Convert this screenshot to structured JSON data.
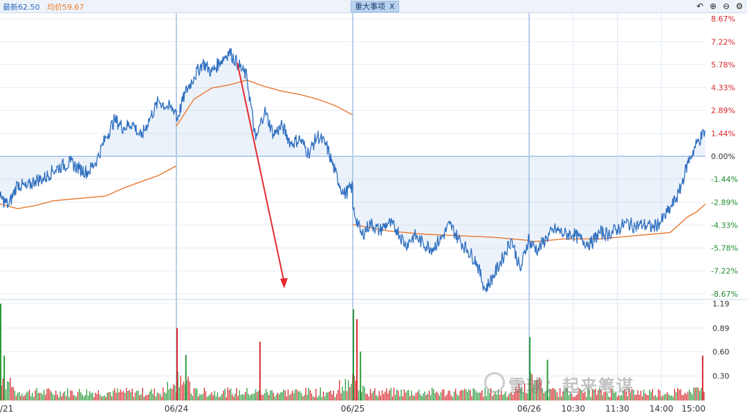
{
  "header": {
    "latest_label": "最新62.50",
    "avg_label": "均价59.67",
    "event_tab_label": "重大事项",
    "event_tab_close": "X"
  },
  "toolbar": {
    "undo_icon": "undo-icon",
    "zoom_in_icon": "zoom-in-icon",
    "zoom_out_icon": "zoom-out-icon",
    "settings_icon": "gear-icon"
  },
  "watermark": {
    "text": "雪球：起来筹谋"
  },
  "chart_data": {
    "type": "line",
    "title": "",
    "price_axis": {
      "ticks": [
        "8.67%",
        "7.22%",
        "5.78%",
        "4.33%",
        "2.89%",
        "1.44%",
        "0.00%",
        "-1.44%",
        "-2.89%",
        "-4.33%",
        "-5.78%",
        "-7.22%",
        "-8.67%"
      ],
      "ylim": [
        -8.67,
        8.67
      ]
    },
    "volume_axis": {
      "ticks": [
        "1.19",
        "0.89",
        "0.60",
        "0.30"
      ],
      "ylim": [
        0,
        1.19
      ]
    },
    "x_ticks": [
      {
        "label": "/21",
        "pos": 0
      },
      {
        "label": "06/24",
        "pos": 1
      },
      {
        "label": "06/25",
        "pos": 2
      },
      {
        "label": "06/26",
        "pos": 3
      },
      {
        "label": "10:30",
        "pos": 3.25
      },
      {
        "label": "11:30",
        "pos": 3.5
      },
      {
        "label": "14:00",
        "pos": 3.75
      },
      {
        "label": "15:00",
        "pos": 4
      }
    ],
    "days": 4,
    "series": [
      {
        "key": "price",
        "color": "#2f6fc0",
        "values": [
          [
            0,
            -2.6
          ],
          [
            0.05,
            -3.1
          ],
          [
            0.1,
            -1.7
          ],
          [
            0.15,
            -2.0
          ],
          [
            0.2,
            -1.5
          ],
          [
            0.25,
            -1.4
          ],
          [
            0.3,
            -0.9
          ],
          [
            0.35,
            -0.6
          ],
          [
            0.4,
            -0.4
          ],
          [
            0.45,
            -0.8
          ],
          [
            0.5,
            -1.0
          ],
          [
            0.55,
            -0.2
          ],
          [
            0.6,
            1.2
          ],
          [
            0.65,
            2.3
          ],
          [
            0.7,
            1.8
          ],
          [
            0.75,
            2.1
          ],
          [
            0.8,
            1.2
          ],
          [
            0.85,
            2.4
          ],
          [
            0.9,
            3.5
          ],
          [
            0.95,
            3.1
          ],
          [
            1.0,
            2.9
          ],
          [
            1.0,
            2.2
          ],
          [
            1.05,
            4.0
          ],
          [
            1.1,
            5.0
          ],
          [
            1.15,
            5.9
          ],
          [
            1.2,
            5.3
          ],
          [
            1.25,
            6.0
          ],
          [
            1.3,
            6.6
          ],
          [
            1.35,
            5.8
          ],
          [
            1.4,
            5.0
          ],
          [
            1.45,
            1.0
          ],
          [
            1.5,
            2.9
          ],
          [
            1.55,
            1.4
          ],
          [
            1.6,
            1.9
          ],
          [
            1.65,
            0.8
          ],
          [
            1.7,
            1.1
          ],
          [
            1.75,
            0.2
          ],
          [
            1.8,
            1.3
          ],
          [
            1.85,
            0.7
          ],
          [
            1.9,
            -1.0
          ],
          [
            1.95,
            -2.4
          ],
          [
            2.0,
            -1.9
          ],
          [
            2.0,
            -3.2
          ],
          [
            2.05,
            -5.0
          ],
          [
            2.1,
            -4.2
          ],
          [
            2.15,
            -4.7
          ],
          [
            2.2,
            -4.2
          ],
          [
            2.25,
            -4.6
          ],
          [
            2.3,
            -5.6
          ],
          [
            2.35,
            -5.0
          ],
          [
            2.4,
            -5.5
          ],
          [
            2.45,
            -5.8
          ],
          [
            2.5,
            -5.2
          ],
          [
            2.55,
            -4.3
          ],
          [
            2.6,
            -5.2
          ],
          [
            2.65,
            -5.9
          ],
          [
            2.7,
            -6.6
          ],
          [
            2.75,
            -8.4
          ],
          [
            2.8,
            -7.5
          ],
          [
            2.85,
            -6.4
          ],
          [
            2.9,
            -5.2
          ],
          [
            2.95,
            -7.2
          ],
          [
            3.0,
            -5.0
          ],
          [
            3.0,
            -5.4
          ],
          [
            3.05,
            -5.9
          ],
          [
            3.1,
            -5.1
          ],
          [
            3.15,
            -4.6
          ],
          [
            3.2,
            -4.9
          ],
          [
            3.25,
            -4.9
          ],
          [
            3.3,
            -5.3
          ],
          [
            3.35,
            -5.5
          ],
          [
            3.4,
            -4.8
          ],
          [
            3.45,
            -4.9
          ],
          [
            3.5,
            -4.6
          ],
          [
            3.55,
            -4.2
          ],
          [
            3.6,
            -4.4
          ],
          [
            3.65,
            -4.3
          ],
          [
            3.7,
            -4.5
          ],
          [
            3.75,
            -4.1
          ],
          [
            3.8,
            -3.3
          ],
          [
            3.85,
            -2.3
          ],
          [
            3.9,
            -0.4
          ],
          [
            3.95,
            0.8
          ],
          [
            4.0,
            1.6
          ]
        ]
      },
      {
        "key": "avg",
        "color": "#e8772e",
        "values": [
          [
            0,
            -3.0
          ],
          [
            0.1,
            -3.3
          ],
          [
            0.2,
            -3.1
          ],
          [
            0.3,
            -2.8
          ],
          [
            0.4,
            -2.7
          ],
          [
            0.5,
            -2.6
          ],
          [
            0.6,
            -2.5
          ],
          [
            0.7,
            -2.0
          ],
          [
            0.8,
            -1.6
          ],
          [
            0.9,
            -1.2
          ],
          [
            1.0,
            -0.6
          ],
          [
            1.0,
            1.9
          ],
          [
            1.1,
            3.6
          ],
          [
            1.2,
            4.3
          ],
          [
            1.3,
            4.5
          ],
          [
            1.4,
            4.8
          ],
          [
            1.5,
            4.4
          ],
          [
            1.6,
            4.1
          ],
          [
            1.7,
            3.9
          ],
          [
            1.8,
            3.6
          ],
          [
            1.9,
            3.2
          ],
          [
            2.0,
            2.6
          ],
          [
            2.0,
            -4.3
          ],
          [
            2.2,
            -4.7
          ],
          [
            2.4,
            -4.9
          ],
          [
            2.6,
            -5.0
          ],
          [
            2.8,
            -5.1
          ],
          [
            3.0,
            -5.3
          ],
          [
            3.0,
            -5.4
          ],
          [
            3.2,
            -5.2
          ],
          [
            3.4,
            -5.2
          ],
          [
            3.5,
            -5.1
          ],
          [
            3.6,
            -5.0
          ],
          [
            3.7,
            -4.9
          ],
          [
            3.8,
            -4.8
          ],
          [
            3.9,
            -3.8
          ],
          [
            3.95,
            -3.5
          ],
          [
            4.0,
            -3.0
          ]
        ]
      }
    ],
    "volume_spikes": [
      {
        "x": 0.0,
        "v": 1.19,
        "c": "g"
      },
      {
        "x": 0.02,
        "v": 0.55,
        "c": "g"
      },
      {
        "x": 1.0,
        "v": 0.89,
        "c": "r"
      },
      {
        "x": 1.05,
        "v": 0.56,
        "c": "g"
      },
      {
        "x": 1.47,
        "v": 0.72,
        "c": "r"
      },
      {
        "x": 2.0,
        "v": 1.12,
        "c": "g"
      },
      {
        "x": 2.02,
        "v": 1.0,
        "c": "r"
      },
      {
        "x": 2.04,
        "v": 0.6,
        "c": "g"
      },
      {
        "x": 3.0,
        "v": 0.78,
        "c": "g"
      },
      {
        "x": 3.1,
        "v": 0.5,
        "c": "g"
      },
      {
        "x": 3.98,
        "v": 0.55,
        "c": "r"
      }
    ]
  }
}
